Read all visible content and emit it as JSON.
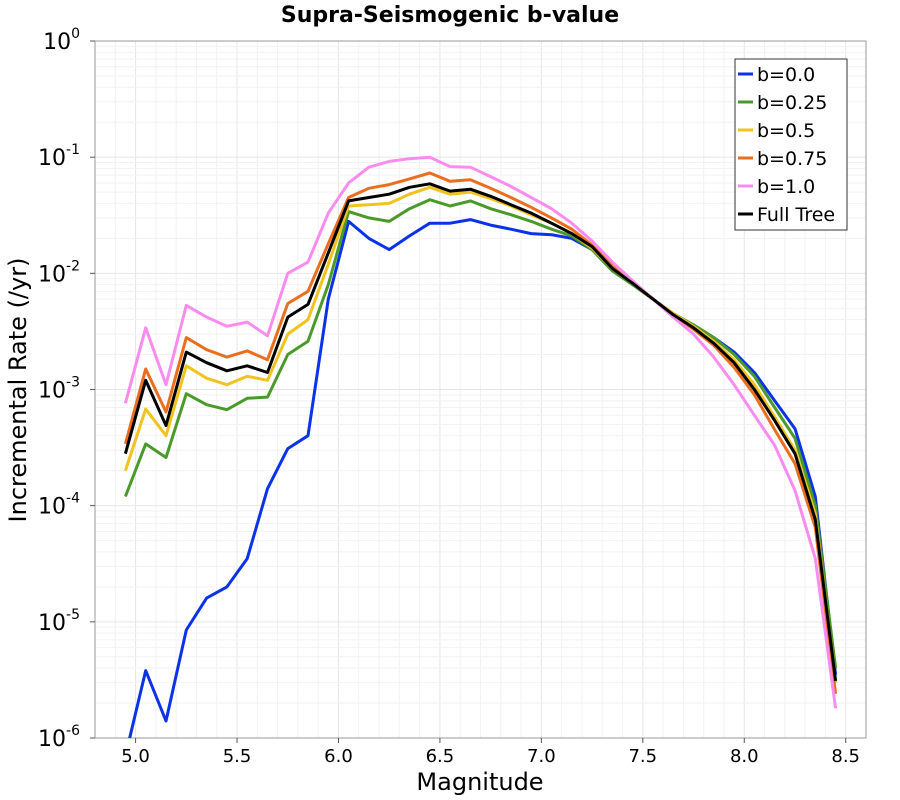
{
  "chart_data": {
    "type": "line",
    "title": "Supra-Seismogenic b-value",
    "xlabel": "Magnitude",
    "ylabel": "Incremental Rate (/yr)",
    "xlim": [
      4.8,
      8.6
    ],
    "ylim": [
      1e-06,
      1
    ],
    "yscale": "log",
    "grid": true,
    "legend_position": "top-right",
    "xticks": [
      5.0,
      5.5,
      6.0,
      6.5,
      7.0,
      7.5,
      8.0,
      8.5
    ],
    "xtick_labels": [
      "5.0",
      "5.5",
      "6.0",
      "6.5",
      "7.0",
      "7.5",
      "8.0",
      "8.5"
    ],
    "yticks": [
      {
        "base": "10",
        "exp": "0",
        "value": 1
      },
      {
        "base": "10",
        "exp": "-1",
        "value": 0.1
      },
      {
        "base": "10",
        "exp": "-2",
        "value": 0.01
      },
      {
        "base": "10",
        "exp": "-3",
        "value": 0.001
      },
      {
        "base": "10",
        "exp": "-4",
        "value": 0.0001
      },
      {
        "base": "10",
        "exp": "-5",
        "value": 1e-05
      },
      {
        "base": "10",
        "exp": "-6",
        "value": 1e-06
      }
    ],
    "x": [
      4.95,
      5.05,
      5.15,
      5.25,
      5.35,
      5.45,
      5.55,
      5.65,
      5.75,
      5.85,
      5.95,
      6.05,
      6.15,
      6.25,
      6.35,
      6.45,
      6.55,
      6.65,
      6.75,
      6.85,
      6.95,
      7.05,
      7.15,
      7.25,
      7.35,
      7.45,
      7.55,
      7.65,
      7.75,
      7.85,
      7.95,
      8.05,
      8.15,
      8.25,
      8.35,
      8.45
    ],
    "series": [
      {
        "name": "b=0.0",
        "color": "#0a32e6",
        "values": [
          7e-07,
          3.8e-06,
          1.4e-06,
          8.5e-06,
          1.6e-05,
          2e-05,
          3.5e-05,
          0.00014,
          0.00031,
          0.0004,
          0.006,
          0.028,
          0.02,
          0.016,
          0.021,
          0.027,
          0.027,
          0.029,
          0.026,
          0.024,
          0.022,
          0.0215,
          0.02,
          0.016,
          0.0105,
          0.008,
          0.006,
          0.0043,
          0.0036,
          0.0028,
          0.0021,
          0.0014,
          0.0008,
          0.00046,
          0.00012,
          3.5e-06
        ]
      },
      {
        "name": "b=0.25",
        "color": "#4a9a2a",
        "values": [
          0.00012,
          0.00034,
          0.00026,
          0.00092,
          0.00074,
          0.00067,
          0.00084,
          0.00086,
          0.002,
          0.0026,
          0.008,
          0.034,
          0.03,
          0.028,
          0.036,
          0.043,
          0.038,
          0.042,
          0.036,
          0.032,
          0.028,
          0.024,
          0.021,
          0.016,
          0.0105,
          0.008,
          0.006,
          0.0045,
          0.0036,
          0.0028,
          0.002,
          0.0013,
          0.0007,
          0.00038,
          0.0001,
          4e-06
        ]
      },
      {
        "name": "b=0.5",
        "color": "#f0c31e",
        "values": [
          0.0002,
          0.00068,
          0.0004,
          0.0016,
          0.00125,
          0.0011,
          0.0013,
          0.0012,
          0.003,
          0.004,
          0.012,
          0.038,
          0.039,
          0.04,
          0.048,
          0.055,
          0.048,
          0.05,
          0.044,
          0.038,
          0.032,
          0.027,
          0.022,
          0.0165,
          0.011,
          0.0082,
          0.006,
          0.0045,
          0.0035,
          0.0026,
          0.0018,
          0.0011,
          0.00058,
          0.0003,
          8.5e-05,
          3e-06
        ]
      },
      {
        "name": "b=0.75",
        "color": "#eb6e1e",
        "values": [
          0.00034,
          0.0015,
          0.00064,
          0.0028,
          0.0022,
          0.0019,
          0.00215,
          0.0018,
          0.0055,
          0.007,
          0.018,
          0.045,
          0.054,
          0.058,
          0.065,
          0.073,
          0.062,
          0.064,
          0.054,
          0.045,
          0.037,
          0.03,
          0.024,
          0.0175,
          0.0115,
          0.0084,
          0.006,
          0.0044,
          0.0033,
          0.0024,
          0.00155,
          0.0009,
          0.00045,
          0.00023,
          6.5e-05,
          2.4e-06
        ]
      },
      {
        "name": "b=1.0",
        "color": "#fa8cf0",
        "values": [
          0.00076,
          0.0034,
          0.0011,
          0.0053,
          0.0042,
          0.0035,
          0.0038,
          0.0029,
          0.01,
          0.0125,
          0.033,
          0.06,
          0.082,
          0.092,
          0.097,
          0.1,
          0.083,
          0.082,
          0.068,
          0.056,
          0.045,
          0.036,
          0.027,
          0.019,
          0.0125,
          0.0086,
          0.006,
          0.0042,
          0.003,
          0.0019,
          0.0011,
          0.0006,
          0.00033,
          0.000135,
          3.5e-05,
          1.8e-06
        ]
      },
      {
        "name": "Full Tree",
        "color": "#000000",
        "values": [
          0.00028,
          0.0012,
          0.00049,
          0.0021,
          0.0017,
          0.00145,
          0.0016,
          0.0014,
          0.0042,
          0.0054,
          0.015,
          0.042,
          0.045,
          0.048,
          0.055,
          0.059,
          0.051,
          0.053,
          0.046,
          0.039,
          0.033,
          0.027,
          0.022,
          0.017,
          0.011,
          0.0082,
          0.006,
          0.0044,
          0.0034,
          0.0025,
          0.0017,
          0.001,
          0.00054,
          0.00028,
          7.6e-05,
          3.1e-06
        ]
      }
    ]
  }
}
